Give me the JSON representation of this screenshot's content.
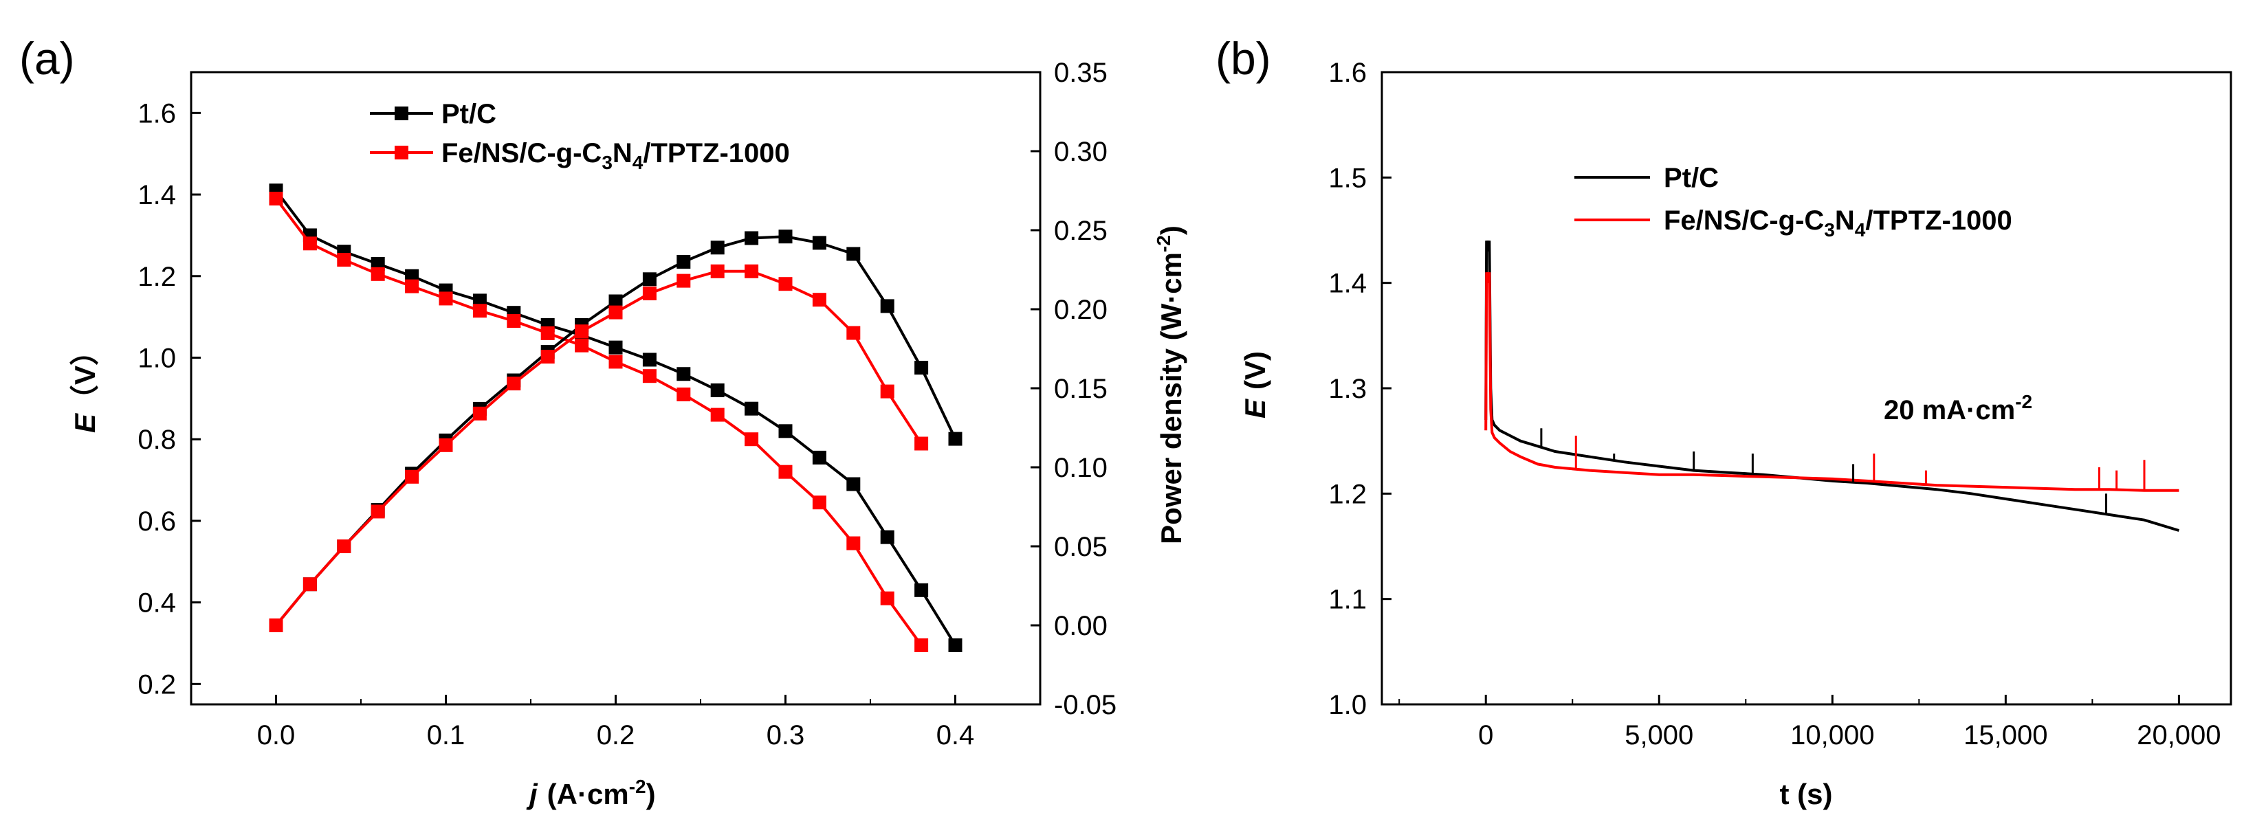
{
  "chart_data": [
    {
      "panel_label": "(a)",
      "type": "line",
      "xlabel_var": "j",
      "xlabel_unit": "(A·cm",
      "xlabel_exp": "-2",
      "xlabel_close": ")",
      "ylabel_var": "E",
      "ylabel_unit": "（V）",
      "y2label_text": "Power density (W·cm",
      "y2label_exp": "-2",
      "y2label_close": ")",
      "xlim": [
        -0.05,
        0.45
      ],
      "ylim": [
        0.15,
        1.7
      ],
      "y2lim": [
        -0.05,
        0.35
      ],
      "xticks": [
        "0.0",
        "0.1",
        "0.2",
        "0.3",
        "0.4"
      ],
      "yticks": [
        "0.2",
        "0.4",
        "0.6",
        "0.8",
        "1.0",
        "1.2",
        "1.4",
        "1.6"
      ],
      "y2ticks": [
        "-0.05",
        "0.00",
        "0.05",
        "0.10",
        "0.15",
        "0.20",
        "0.25",
        "0.30",
        "0.35"
      ],
      "legend": [
        "Pt/C",
        "Fe/NS/C-g-C3N4/TPTZ-1000"
      ],
      "series": [
        {
          "name": "Pt/C",
          "axis": "left",
          "color": "#000000",
          "x": [
            0.0,
            0.02,
            0.04,
            0.06,
            0.08,
            0.1,
            0.12,
            0.14,
            0.16,
            0.18,
            0.2,
            0.22,
            0.24,
            0.26,
            0.28,
            0.3,
            0.32,
            0.34,
            0.36,
            0.38,
            0.4
          ],
          "y": [
            1.41,
            1.3,
            1.26,
            1.23,
            1.2,
            1.165,
            1.14,
            1.11,
            1.08,
            1.055,
            1.025,
            0.995,
            0.96,
            0.92,
            0.875,
            0.82,
            0.755,
            0.69,
            0.56,
            0.43,
            0.295
          ]
        },
        {
          "name": "Fe/NS/C-g-C3N4/TPTZ-1000",
          "axis": "left",
          "color": "#ff0000",
          "x": [
            0.0,
            0.02,
            0.04,
            0.06,
            0.08,
            0.1,
            0.12,
            0.14,
            0.16,
            0.18,
            0.2,
            0.22,
            0.24,
            0.26,
            0.28,
            0.3,
            0.32,
            0.34,
            0.36,
            0.38
          ],
          "y": [
            1.39,
            1.28,
            1.24,
            1.205,
            1.175,
            1.145,
            1.115,
            1.09,
            1.06,
            1.03,
            0.99,
            0.955,
            0.91,
            0.86,
            0.8,
            0.72,
            0.645,
            0.545,
            0.41,
            0.295
          ]
        },
        {
          "name": "Pt/C power density",
          "axis": "right",
          "color": "#000000",
          "x": [
            0.0,
            0.02,
            0.04,
            0.06,
            0.08,
            0.1,
            0.12,
            0.14,
            0.16,
            0.18,
            0.2,
            0.22,
            0.24,
            0.26,
            0.28,
            0.3,
            0.32,
            0.34,
            0.36,
            0.38,
            0.4
          ],
          "y": [
            0.0,
            0.026,
            0.05,
            0.073,
            0.096,
            0.117,
            0.137,
            0.155,
            0.173,
            0.19,
            0.205,
            0.219,
            0.23,
            0.239,
            0.245,
            0.246,
            0.242,
            0.235,
            0.202,
            0.163,
            0.118
          ]
        },
        {
          "name": "Fe/NS/C-g-C3N4/TPTZ-1000 power density",
          "axis": "right",
          "color": "#ff0000",
          "x": [
            0.0,
            0.02,
            0.04,
            0.06,
            0.08,
            0.1,
            0.12,
            0.14,
            0.16,
            0.18,
            0.2,
            0.22,
            0.24,
            0.26,
            0.28,
            0.3,
            0.32,
            0.34,
            0.36,
            0.38
          ],
          "y": [
            0.0,
            0.026,
            0.05,
            0.072,
            0.094,
            0.114,
            0.134,
            0.153,
            0.17,
            0.186,
            0.198,
            0.21,
            0.218,
            0.224,
            0.224,
            0.216,
            0.206,
            0.185,
            0.148,
            0.115
          ]
        }
      ]
    },
    {
      "panel_label": "(b)",
      "type": "line",
      "xlabel": "t (s)",
      "ylabel_var": "E",
      "ylabel_unit": "(V)",
      "xlim": [
        -3000,
        21500
      ],
      "ylim": [
        1.0,
        1.6
      ],
      "xticks": [
        "0",
        "5,000",
        "10,000",
        "15,000",
        "20,000"
      ],
      "yticks": [
        "1.0",
        "1.1",
        "1.2",
        "1.3",
        "1.4",
        "1.5",
        "1.6"
      ],
      "annotation_base": "20 mA·cm",
      "annotation_exp": "-2",
      "legend": [
        "Pt/C",
        "Fe/NS/C-g-C3N4/TPTZ-1000"
      ],
      "series": [
        {
          "name": "Pt/C",
          "color": "#000000",
          "x": [
            0,
            20,
            60,
            100,
            140,
            180,
            250,
            400,
            700,
            1000,
            1500,
            2000,
            3000,
            4000,
            5000,
            6000,
            7000,
            8000,
            9000,
            10000,
            11000,
            12000,
            13000,
            14000,
            15000,
            16000,
            17000,
            18000,
            19000,
            20000
          ],
          "y": [
            1.27,
            1.44,
            1.43,
            1.44,
            1.3,
            1.27,
            1.265,
            1.26,
            1.255,
            1.25,
            1.245,
            1.24,
            1.235,
            1.23,
            1.226,
            1.222,
            1.22,
            1.218,
            1.215,
            1.212,
            1.21,
            1.207,
            1.204,
            1.2,
            1.195,
            1.19,
            1.185,
            1.18,
            1.175,
            1.165
          ]
        },
        {
          "name": "Fe/NS/C-g-C3N4/TPTZ-1000",
          "color": "#ff0000",
          "x": [
            0,
            20,
            60,
            100,
            140,
            180,
            250,
            400,
            700,
            1000,
            1500,
            2000,
            3000,
            4000,
            5000,
            6000,
            7000,
            8000,
            9000,
            10000,
            11000,
            12000,
            13000,
            14000,
            15000,
            16000,
            17000,
            18000,
            19000,
            20000
          ],
          "y": [
            1.26,
            1.41,
            1.4,
            1.41,
            1.28,
            1.258,
            1.253,
            1.248,
            1.24,
            1.235,
            1.228,
            1.225,
            1.222,
            1.22,
            1.218,
            1.218,
            1.217,
            1.216,
            1.215,
            1.214,
            1.212,
            1.21,
            1.208,
            1.207,
            1.206,
            1.205,
            1.204,
            1.204,
            1.203,
            1.203
          ]
        }
      ],
      "spikes": [
        {
          "series": 0,
          "x": 1600,
          "y": 1.262
        },
        {
          "series": 0,
          "x": 3700,
          "y": 1.238
        },
        {
          "series": 0,
          "x": 6000,
          "y": 1.24
        },
        {
          "series": 0,
          "x": 7700,
          "y": 1.238
        },
        {
          "series": 0,
          "x": 10600,
          "y": 1.228
        },
        {
          "series": 0,
          "x": 17900,
          "y": 1.2
        },
        {
          "series": 1,
          "x": 2600,
          "y": 1.255
        },
        {
          "series": 1,
          "x": 11200,
          "y": 1.238
        },
        {
          "series": 1,
          "x": 12700,
          "y": 1.222
        },
        {
          "series": 1,
          "x": 17700,
          "y": 1.225
        },
        {
          "series": 1,
          "x": 18200,
          "y": 1.222
        },
        {
          "series": 1,
          "x": 19000,
          "y": 1.232
        }
      ]
    }
  ]
}
